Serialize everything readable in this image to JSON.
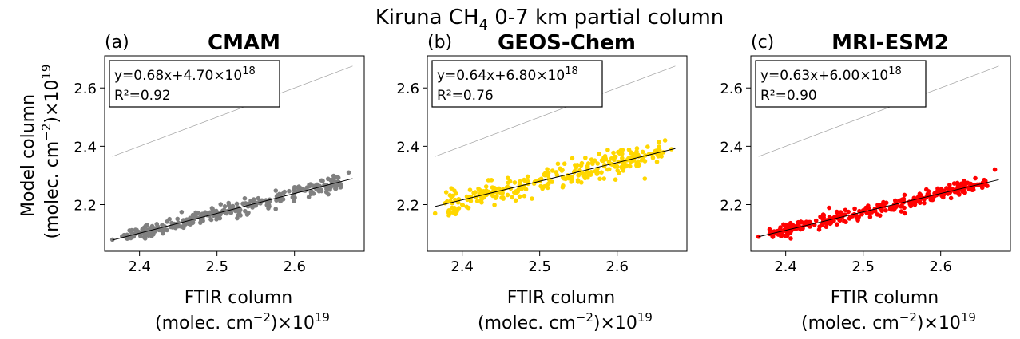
{
  "figure": {
    "title_main": "Kiruna CH",
    "title_sub": "4",
    "title_rest": " 0-7 km partial column",
    "ylabel_line1": "Model column",
    "ylabel_line2_a": "(molec. cm",
    "ylabel_line2_sup": "−2",
    "ylabel_line2_b": ")×10",
    "ylabel_line2_exp": "19",
    "xlabel_line1": "FTIR column",
    "xlabel_line2_a": "(molec. cm",
    "xlabel_line2_sup": "−2",
    "xlabel_line2_b": ")×10",
    "xlabel_line2_exp": "19"
  },
  "chart_data": [
    {
      "type": "scatter",
      "letter": "(a)",
      "title": "CMAM",
      "color": "#808080",
      "fit_text": "y=0.68x+4.70×10",
      "fit_exp": "18",
      "r2_text": "R²=0.92",
      "slope": 0.68,
      "intercept": 0.47,
      "r2": 0.92,
      "xlim": [
        2.355,
        2.69
      ],
      "ylim": [
        2.04,
        2.71
      ],
      "xticks": [
        2.4,
        2.5,
        2.6
      ],
      "yticks": [
        2.2,
        2.4,
        2.6
      ],
      "xtick_labels": [
        "2.4",
        "2.5",
        "2.6"
      ],
      "ytick_labels": [
        "2.2",
        "2.4",
        "2.6"
      ],
      "x_range": [
        2.365,
        2.675
      ],
      "n_points": 300,
      "scatter_sd": 0.012,
      "points_sample": [
        [
          2.365,
          2.08
        ],
        [
          2.4,
          2.1
        ],
        [
          2.45,
          2.13
        ],
        [
          2.5,
          2.17
        ],
        [
          2.55,
          2.2
        ],
        [
          2.6,
          2.24
        ],
        [
          2.67,
          2.31
        ]
      ],
      "one_to_one": true
    },
    {
      "type": "scatter",
      "letter": "(b)",
      "title": "GEOS-Chem",
      "color": "#FFD700",
      "fit_text": "y=0.64x+6.80×10",
      "fit_exp": "18",
      "r2_text": "R²=0.76",
      "slope": 0.64,
      "intercept": 0.68,
      "r2": 0.76,
      "xlim": [
        2.355,
        2.69
      ],
      "ylim": [
        2.04,
        2.71
      ],
      "xticks": [
        2.4,
        2.5,
        2.6
      ],
      "yticks": [
        2.2,
        2.4,
        2.6
      ],
      "xtick_labels": [
        "2.4",
        "2.5",
        "2.6"
      ],
      "ytick_labels": [
        "2.2",
        "2.4",
        "2.6"
      ],
      "x_range": [
        2.365,
        2.675
      ],
      "n_points": 300,
      "scatter_sd": 0.022,
      "points_sample": [
        [
          2.365,
          2.17
        ],
        [
          2.4,
          2.2
        ],
        [
          2.45,
          2.24
        ],
        [
          2.5,
          2.28
        ],
        [
          2.55,
          2.3
        ],
        [
          2.6,
          2.33
        ],
        [
          2.67,
          2.39
        ]
      ],
      "one_to_one": true
    },
    {
      "type": "scatter",
      "letter": "(c)",
      "title": "MRI-ESM2",
      "color": "#FF0000",
      "fit_text": "y=0.63x+6.00×10",
      "fit_exp": "18",
      "r2_text": "R²=0.90",
      "slope": 0.63,
      "intercept": 0.6,
      "r2": 0.9,
      "xlim": [
        2.355,
        2.69
      ],
      "ylim": [
        2.04,
        2.71
      ],
      "xticks": [
        2.4,
        2.5,
        2.6
      ],
      "yticks": [
        2.2,
        2.4,
        2.6
      ],
      "xtick_labels": [
        "2.4",
        "2.5",
        "2.6"
      ],
      "ytick_labels": [
        "2.2",
        "2.4",
        "2.6"
      ],
      "x_range": [
        2.365,
        2.675
      ],
      "n_points": 300,
      "scatter_sd": 0.012,
      "points_sample": [
        [
          2.365,
          2.09
        ],
        [
          2.4,
          2.11
        ],
        [
          2.45,
          2.14
        ],
        [
          2.5,
          2.18
        ],
        [
          2.55,
          2.21
        ],
        [
          2.6,
          2.24
        ],
        [
          2.67,
          2.32
        ]
      ],
      "one_to_one": true
    }
  ]
}
